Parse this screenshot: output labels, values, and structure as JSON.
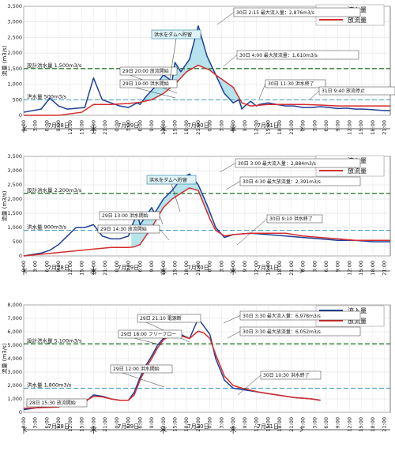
{
  "chart_data": [
    {
      "type": "line",
      "ylabel": "流量 (m3/s)",
      "ylim": [
        0,
        3500
      ],
      "yticks": [
        "0",
        "500",
        "1,000",
        "1,500",
        "2,000",
        "2,500",
        "3,000",
        "3,500"
      ],
      "xticks": [
        "0:00",
        "3:00",
        "6:00",
        "9:00",
        "12:00",
        "15:00",
        "18:00",
        "21:00",
        "0:00",
        "3:00",
        "6:00",
        "9:00",
        "12:00",
        "15:00",
        "18:00",
        "21:00",
        "0:00",
        "3:00",
        "6:00",
        "9:00",
        "12:00",
        "15:00",
        "18:00",
        "21:00",
        "0:00",
        "3:00",
        "6:00",
        "9:00",
        "12:00",
        "15:00",
        "18:00",
        "21:00"
      ],
      "days": [
        "7月28日",
        "7月29日",
        "7月30日",
        "7月31日"
      ],
      "legend": [
        "流入量",
        "放流量"
      ],
      "colors": {
        "inflow": "#1f3f99",
        "outflow": "#d62c2c",
        "design": "#2e7d32",
        "flood": "#4aa3c8",
        "fill": "#aee0ea"
      },
      "design_label": "設計洪水量 1,500m3/s",
      "design_value": 1500,
      "flood_label": "洪水量 500m3/s",
      "flood_value": 500,
      "storage_label": "洪水をダムへ貯留",
      "annotations": [
        "30日 2:15 最大流入量：2,876m3/s",
        "30日 4:00 最大放流量：1,610m3/s",
        "29日 20:00 放流開始",
        "29日 19:00 洪水開始",
        "30日 11:30 洪水終了",
        "31日 9:40 放流停止"
      ],
      "series": [
        {
          "name": "流入量",
          "x": [
            0,
            6,
            9,
            12,
            15,
            21,
            24,
            27,
            30,
            33,
            36,
            39,
            40,
            42,
            45,
            48,
            51,
            52,
            54,
            57,
            60,
            63,
            66,
            69,
            72,
            74,
            75,
            76,
            78,
            80,
            81,
            84,
            87,
            90,
            93,
            96,
            99,
            102,
            105,
            108,
            111,
            114,
            117,
            120,
            123,
            126
          ],
          "values": [
            100,
            200,
            550,
            300,
            200,
            250,
            1200,
            500,
            400,
            300,
            250,
            400,
            350,
            600,
            900,
            1300,
            1100,
            1700,
            1400,
            1800,
            2876,
            1900,
            1300,
            700,
            400,
            500,
            200,
            300,
            450,
            300,
            350,
            400,
            350,
            300,
            300,
            250,
            250,
            280,
            250,
            220,
            230,
            200,
            200,
            180,
            160,
            150
          ]
        },
        {
          "name": "流出量",
          "x": [
            0,
            6,
            12,
            20,
            24,
            30,
            36,
            40,
            44,
            48,
            52,
            56,
            60,
            64,
            66,
            72,
            75,
            78,
            84,
            90,
            96,
            102,
            108,
            114,
            120,
            126
          ],
          "values": [
            0,
            0,
            0,
            100,
            350,
            350,
            380,
            420,
            500,
            700,
            1000,
            1400,
            1610,
            1450,
            1300,
            900,
            400,
            300,
            350,
            350,
            350,
            330,
            300,
            300,
            300,
            300
          ]
        }
      ],
      "fill_range": [
        40,
        75
      ]
    },
    {
      "type": "line",
      "ylabel": "流量 (m3/s)",
      "ylim": [
        0,
        3500
      ],
      "yticks": [
        "0",
        "500",
        "1,000",
        "1,500",
        "2,000",
        "2,500",
        "3,000",
        "3,500"
      ],
      "xticks": [
        "0:00",
        "3:00",
        "6:00",
        "9:00",
        "12:00",
        "15:00",
        "18:00",
        "21:00",
        "0:00",
        "3:00",
        "6:00",
        "9:00",
        "12:00",
        "15:00",
        "18:00",
        "21:00",
        "0:00",
        "3:00",
        "6:00",
        "9:00",
        "12:00",
        "15:00",
        "18:00",
        "21:00",
        "0:00",
        "3:00",
        "6:00",
        "9:00",
        "12:00",
        "15:00",
        "18:00",
        "21:00"
      ],
      "days": [
        "7月28日",
        "7月29日",
        "7月30日",
        "7月31日"
      ],
      "legend": [
        "流入量",
        "放流量"
      ],
      "colors": {
        "inflow": "#1f3f99",
        "outflow": "#d62c2c",
        "design": "#2e7d32",
        "flood": "#4aa3c8",
        "fill": "#aee0ea"
      },
      "design_label": "設計洪水量 2,200m3/s",
      "design_value": 2200,
      "flood_label": "洪水量 900m3/s",
      "flood_value": 900,
      "storage_label": "洪水をダムへ貯留",
      "annotations": [
        "30日 3:00 最大流入量：2,884m3/s",
        "30日 4:30 最大放流量：2,391m3/s",
        "29日 13:00 洪水開始",
        "29日 14:30 放流開始",
        "30日 9:10 洪水終了"
      ],
      "series": [
        {
          "name": "流入量",
          "x": [
            0,
            6,
            9,
            12,
            15,
            18,
            21,
            24,
            27,
            30,
            33,
            36,
            37,
            39,
            40,
            42,
            44,
            45,
            48,
            51,
            54,
            57,
            60,
            63,
            66,
            69,
            72,
            78,
            84,
            90,
            96,
            102,
            108,
            114,
            120,
            126
          ],
          "values": [
            0,
            100,
            200,
            400,
            700,
            1000,
            1000,
            1100,
            700,
            600,
            600,
            700,
            1000,
            1500,
            1100,
            1400,
            1700,
            1500,
            2000,
            2300,
            2700,
            2884,
            2500,
            1800,
            1000,
            650,
            750,
            800,
            750,
            700,
            650,
            600,
            550,
            550,
            500,
            500
          ]
        },
        {
          "name": "流出量",
          "x": [
            0,
            30,
            36,
            38,
            40,
            44,
            48,
            51,
            54,
            57,
            60,
            62,
            64,
            66,
            69,
            72,
            78,
            84,
            90,
            96,
            102,
            108,
            114,
            120,
            126
          ],
          "values": [
            0,
            300,
            300,
            320,
            400,
            1000,
            1700,
            2000,
            2200,
            2391,
            2300,
            1800,
            1300,
            900,
            700,
            750,
            800,
            800,
            800,
            700,
            650,
            600,
            550,
            550,
            550
          ]
        }
      ],
      "fill_range": [
        37,
        64
      ]
    },
    {
      "type": "line",
      "ylabel": "流量 (m3/s)",
      "ylim": [
        0,
        8000
      ],
      "yticks": [
        "0",
        "1,000",
        "2,000",
        "3,000",
        "4,000",
        "5,000",
        "6,000",
        "7,000",
        "8,000"
      ],
      "xticks": [
        "0:00",
        "3:00",
        "6:00",
        "9:00",
        "12:00",
        "15:00",
        "18:00",
        "21:00",
        "0:00",
        "3:00",
        "6:00",
        "9:00",
        "12:00",
        "15:00",
        "18:00",
        "21:00",
        "0:00",
        "3:00",
        "6:00",
        "9:00",
        "12:00",
        "15:00",
        "18:00",
        "21:00",
        "0:00",
        "3:00",
        "6:00",
        "9:00",
        "12:00",
        "15:00",
        "18:00",
        "21:00"
      ],
      "days": [
        "7月28日",
        "7月29日",
        "7月30日",
        "7月31日"
      ],
      "legend": [
        "流入量",
        "放流量"
      ],
      "colors": {
        "inflow": "#1f3f99",
        "outflow": "#d62c2c",
        "design": "#2e7d32",
        "flood": "#4aa3c8",
        "fill": "#aee0ea"
      },
      "design_label": "設計洪水量 5,100m3/s",
      "design_value": 5100,
      "flood_label": "洪水量 1,800m3/s",
      "flood_value": 1800,
      "storage_label": "",
      "annotations": [
        "29日 21:10 電源断",
        "30日 3:30 最大流入量：6,978m3/s",
        "29日 18:00 フリーフロー",
        "30日 3:30 最大放流量：6,052m3/s",
        "29日 12:00 洪水開始",
        "30日 10:30 洪水終了",
        "28日 15:30 放流開始"
      ],
      "series": [
        {
          "name": "流入量",
          "x": [
            0,
            6,
            12,
            15,
            18,
            21,
            24,
            27,
            30,
            33,
            36,
            38,
            40,
            42,
            44,
            46,
            48,
            51,
            54,
            57,
            60,
            62,
            64,
            66,
            69,
            72,
            75,
            78,
            81,
            84,
            87,
            90,
            93,
            96,
            99,
            102
          ],
          "values": [
            200,
            400,
            500,
            600,
            700,
            750,
            1300,
            1200,
            1000,
            900,
            900,
            1500,
            2600,
            3500,
            4200,
            5000,
            5500,
            6000,
            5800,
            5500,
            6978,
            6400,
            5800,
            4000,
            2400,
            1800,
            1700,
            1600,
            1500,
            1400,
            1300,
            1200,
            1100,
            1050,
            1000,
            900
          ]
        },
        {
          "name": "流出量",
          "x": [
            0,
            12,
            15,
            18,
            21,
            24,
            27,
            30,
            33,
            36,
            38,
            40,
            42,
            44,
            46,
            48,
            51,
            54,
            57,
            60,
            62,
            64,
            66,
            69,
            72,
            75,
            78,
            81,
            84,
            87,
            90,
            93,
            96,
            99,
            102
          ],
          "values": [
            300,
            400,
            600,
            700,
            800,
            1200,
            1150,
            1000,
            900,
            900,
            1300,
            2400,
            3300,
            4000,
            4800,
            5400,
            5800,
            5700,
            5500,
            6052,
            5900,
            5500,
            4300,
            2700,
            2000,
            1800,
            1650,
            1500,
            1400,
            1300,
            1200,
            1100,
            1050,
            1000,
            900
          ]
        }
      ],
      "fill_range": []
    }
  ]
}
